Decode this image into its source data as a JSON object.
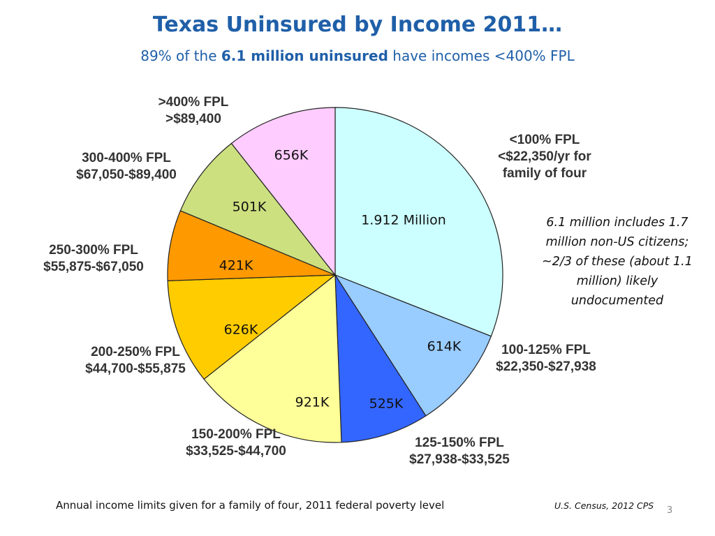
{
  "slide": {
    "title": "Texas Uninsured by Income 2011…",
    "subtitle_pre": "89% of the ",
    "subtitle_bold": "6.1 million uninsured",
    "subtitle_post": " have incomes <400% FPL",
    "note": "6.1 million includes 1.7 million non-US citizens; ~2/3 of these (about 1.1 million) likely undocumented",
    "footer": "Annual income limits given for a family of four, 2011 federal poverty level",
    "source": "U.S. Census, 2012 CPS",
    "page_number": "3"
  },
  "chart_data": {
    "type": "pie",
    "title": "Texas Uninsured by Income 2011…",
    "unit": "uninsured people",
    "start_angle_deg": 0,
    "direction": "clockwise",
    "slices": [
      {
        "label_lines": [
          "<100% FPL",
          "<$22,350/yr for",
          "family of four"
        ],
        "value": 1912000,
        "value_label": "1.912 Million",
        "color": "#ccffff"
      },
      {
        "label_lines": [
          "100-125% FPL",
          "$22,350-$27,938"
        ],
        "value": 614000,
        "value_label": "614K",
        "color": "#99ccff"
      },
      {
        "label_lines": [
          "125-150% FPL",
          "$27,938-$33,525"
        ],
        "value": 525000,
        "value_label": "525K",
        "color": "#3366ff"
      },
      {
        "label_lines": [
          "150-200% FPL",
          "$33,525-$44,700"
        ],
        "value": 921000,
        "value_label": "921K",
        "color": "#ffff99"
      },
      {
        "label_lines": [
          "200-250% FPL",
          "$44,700-$55,875"
        ],
        "value": 626000,
        "value_label": "626K",
        "color": "#ffcc00"
      },
      {
        "label_lines": [
          "250-300% FPL",
          "$55,875-$67,050"
        ],
        "value": 421000,
        "value_label": "421K",
        "color": "#ff9900"
      },
      {
        "label_lines": [
          "300-400% FPL",
          "$67,050-$89,400"
        ],
        "value": 501000,
        "value_label": "501K",
        "color": "#cce080"
      },
      {
        "label_lines": [
          ">400% FPL",
          ">$89,400"
        ],
        "value": 656000,
        "value_label": "656K",
        "color": "#ffccff"
      }
    ]
  }
}
